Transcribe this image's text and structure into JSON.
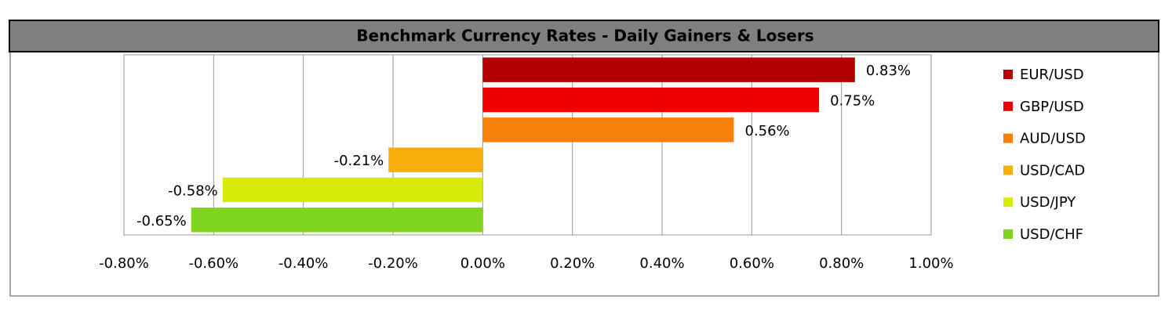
{
  "chart_data": {
    "type": "bar",
    "orientation": "horizontal",
    "title": "Benchmark Currency Rates - Daily Gainers & Losers",
    "categories": [
      "EUR/USD",
      "GBP/USD",
      "AUD/USD",
      "USD/CAD",
      "USD/JPY",
      "USD/CHF"
    ],
    "values": [
      0.83,
      0.75,
      0.56,
      -0.21,
      -0.58,
      -0.65
    ],
    "value_labels": [
      "0.83%",
      "0.75%",
      "0.56%",
      "-0.21%",
      "-0.58%",
      "-0.65%"
    ],
    "colors": [
      "#b30000",
      "#ee0000",
      "#f5800a",
      "#f5ae0a",
      "#d8ea0a",
      "#7fd420"
    ],
    "xlim": [
      -0.8,
      1.0
    ],
    "xticks": [
      {
        "value": -0.8,
        "label": "-0.80%"
      },
      {
        "value": -0.6,
        "label": "-0.60%"
      },
      {
        "value": -0.4,
        "label": "-0.40%"
      },
      {
        "value": -0.2,
        "label": "-0.20%"
      },
      {
        "value": 0,
        "label": "0.00%"
      },
      {
        "value": 0.2,
        "label": "0.20%"
      },
      {
        "value": 0.4,
        "label": "0.40%"
      },
      {
        "value": 0.6,
        "label": "0.60%"
      },
      {
        "value": 0.8,
        "label": "0.80%"
      },
      {
        "value": 1.0,
        "label": "1.00%"
      }
    ],
    "grid": true,
    "legend": "right"
  }
}
